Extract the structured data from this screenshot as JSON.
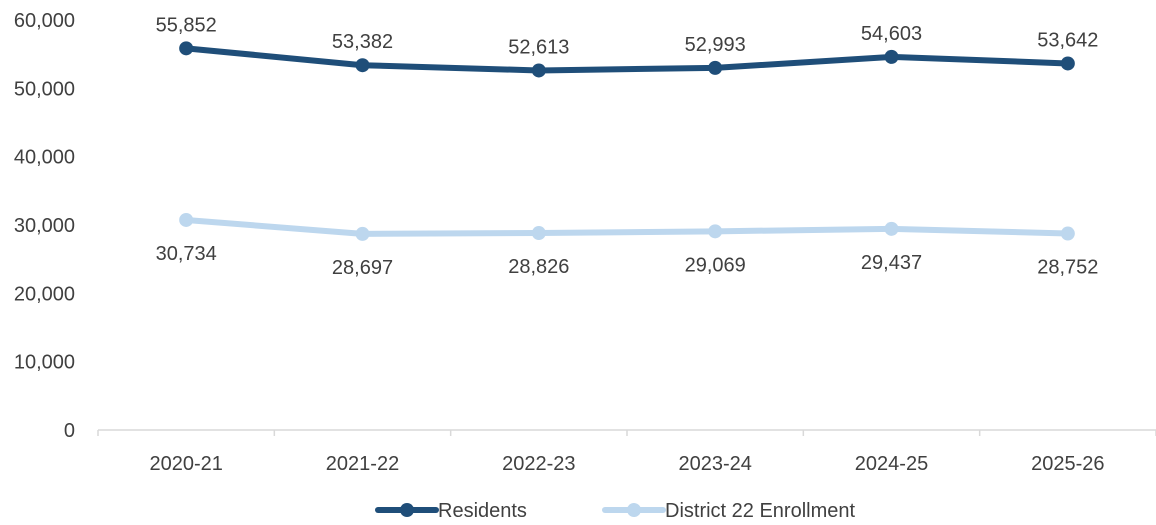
{
  "chart_data": {
    "type": "line",
    "title": "",
    "xlabel": "",
    "ylabel": "",
    "categories": [
      "2020-21",
      "2021-22",
      "2022-23",
      "2023-24",
      "2024-25",
      "2025-26"
    ],
    "series": [
      {
        "name": "Residents",
        "values": [
          55852,
          53382,
          52613,
          52993,
          54603,
          53642
        ],
        "labels": [
          "55,852",
          "53,382",
          "52,613",
          "52,993",
          "54,603",
          "53,642"
        ],
        "color": "#1f4e79",
        "label_position": "above"
      },
      {
        "name": "District 22 Enrollment",
        "values": [
          30734,
          28697,
          28826,
          29069,
          29437,
          28752
        ],
        "labels": [
          "30,734",
          "28,697",
          "28,826",
          "29,069",
          "29,437",
          "28,752"
        ],
        "color": "#bdd7ee",
        "label_position": "below"
      }
    ],
    "ylim": [
      0,
      60000
    ],
    "yticks": [
      0,
      10000,
      20000,
      30000,
      40000,
      50000,
      60000
    ],
    "ytick_labels": [
      "0",
      "10,000",
      "20,000",
      "30,000",
      "40,000",
      "50,000",
      "60,000"
    ],
    "grid": false,
    "legend": "bottom-center"
  }
}
